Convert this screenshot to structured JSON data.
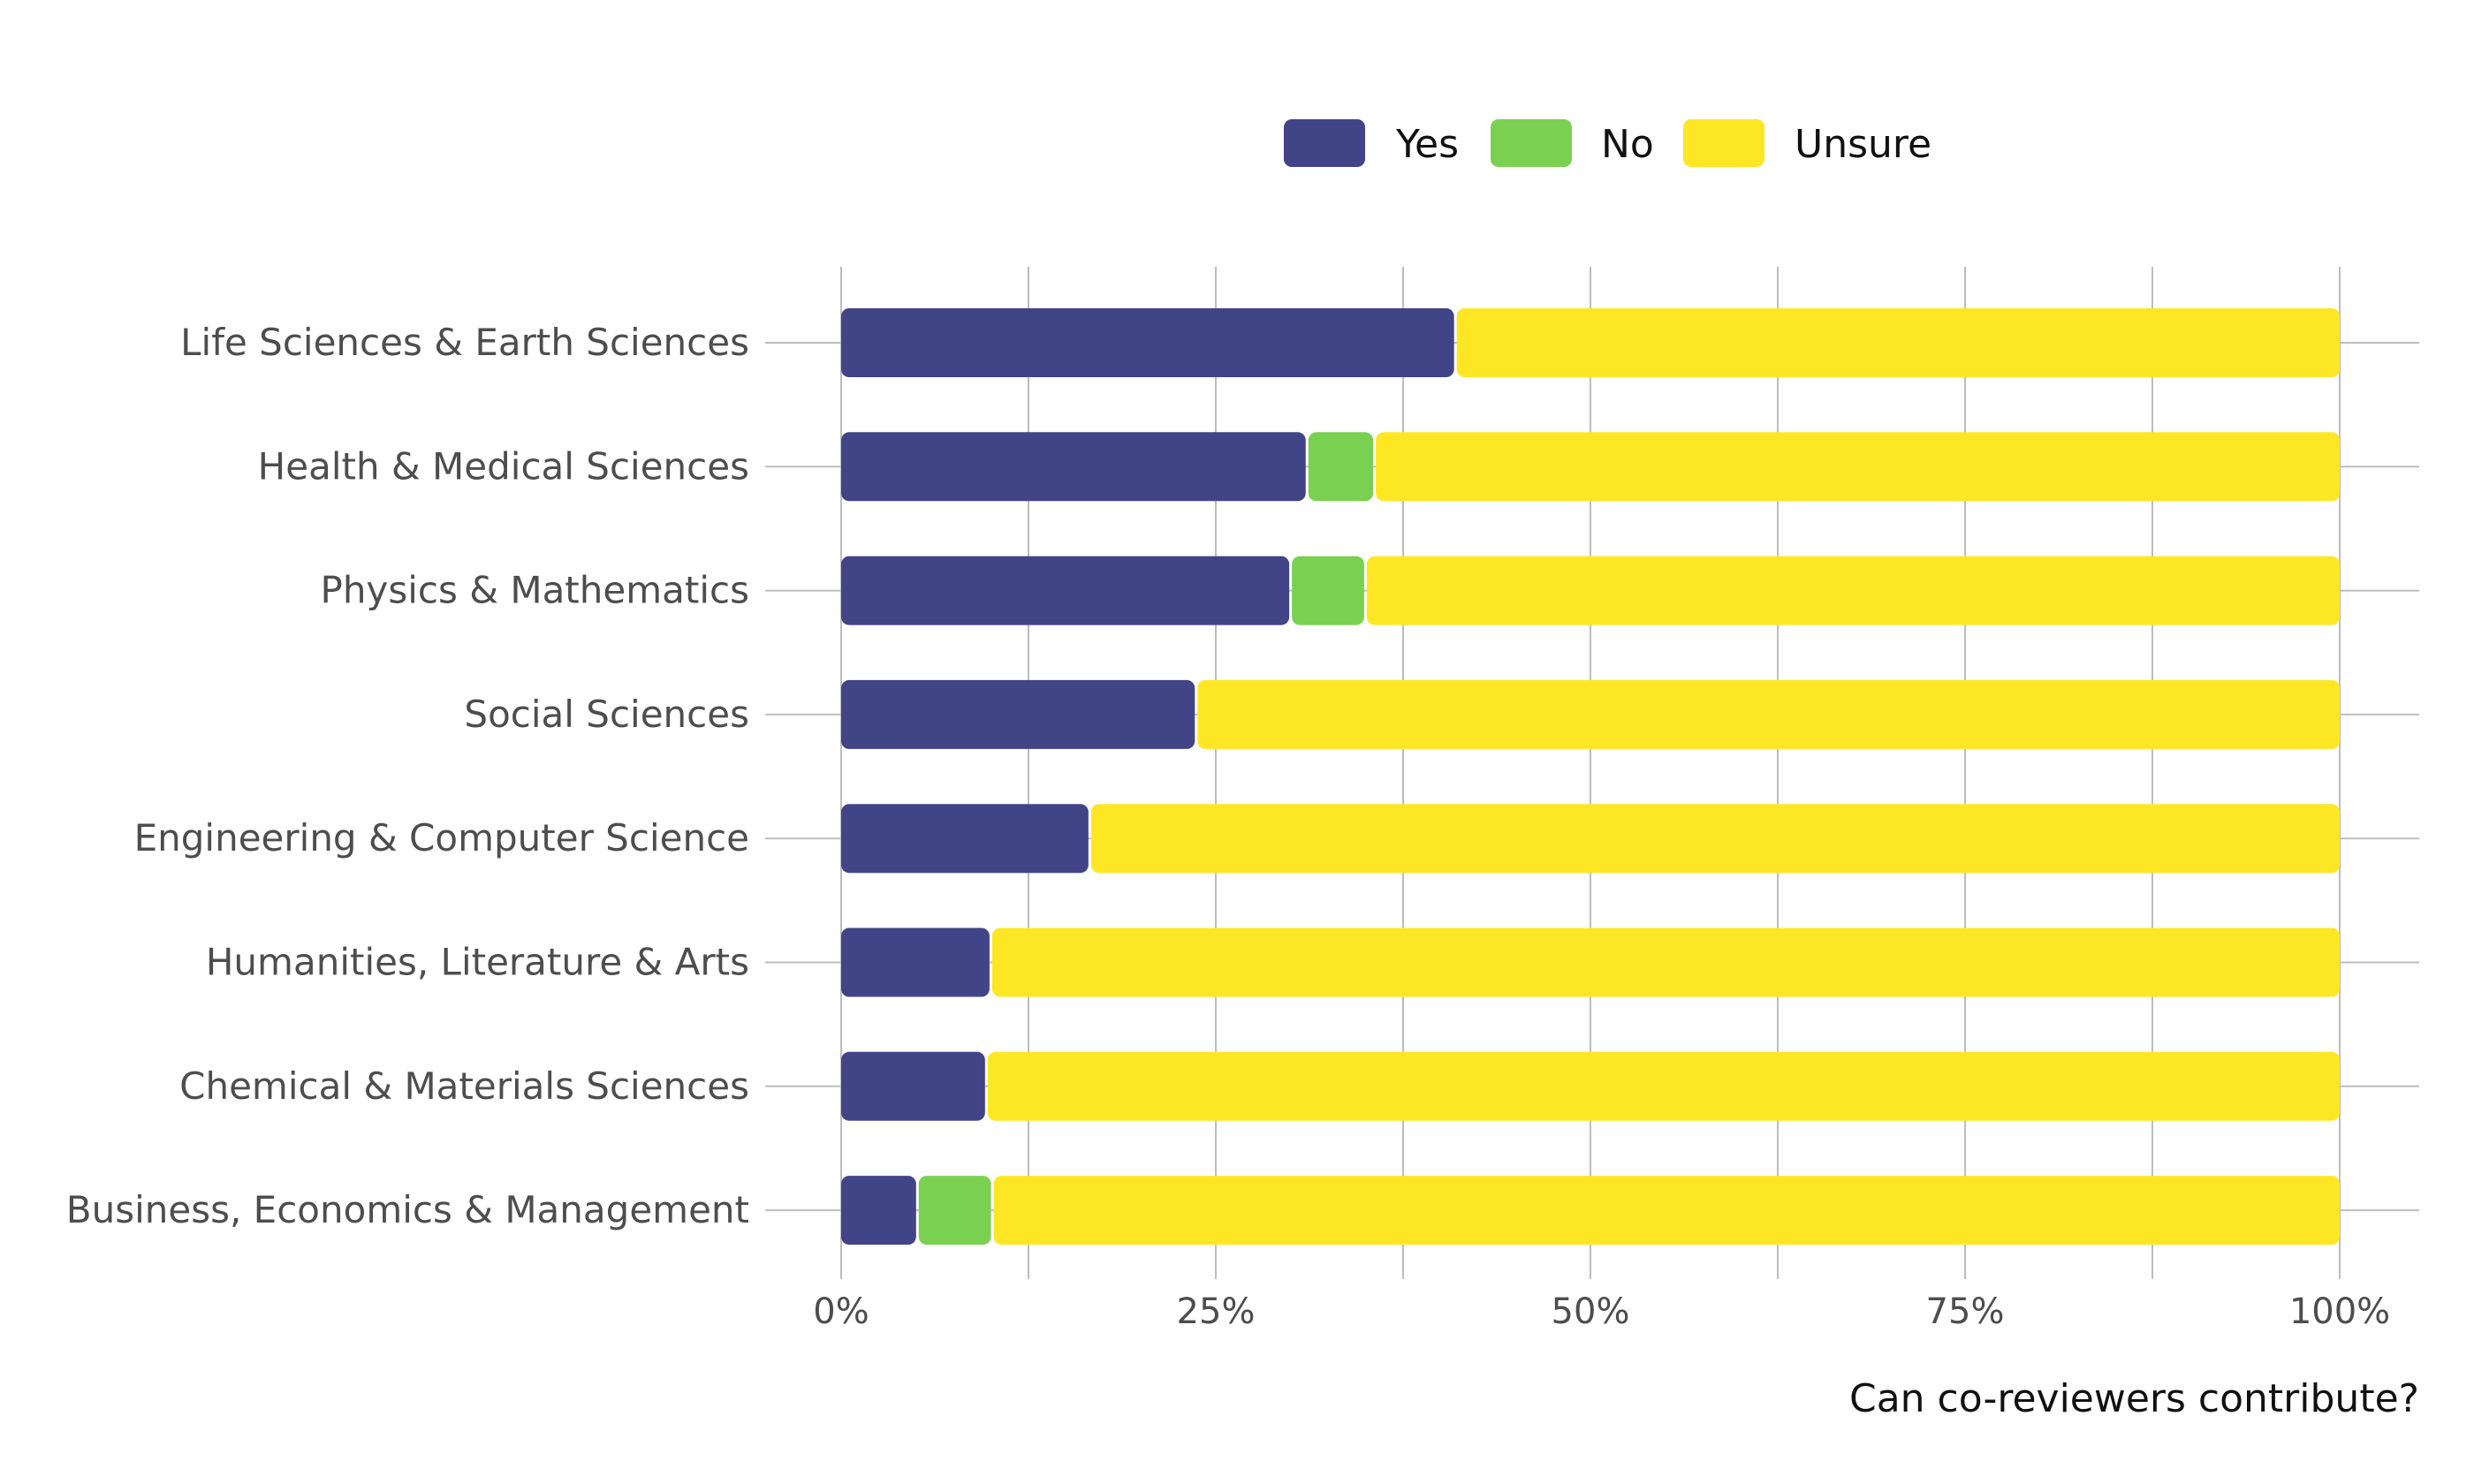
{
  "chart_data": {
    "type": "bar",
    "orientation": "horizontal",
    "stacked": true,
    "percent": true,
    "title": "",
    "xlabel": "Can co-reviewers contribute?",
    "ylabel": "",
    "xlim": [
      0,
      100
    ],
    "x_ticks": [
      "0%",
      "25%",
      "50%",
      "75%",
      "100%"
    ],
    "grid": true,
    "legend_position": "top",
    "categories": [
      "Life Sciences & Earth Sciences",
      "Health & Medical Sciences",
      "Physics & Mathematics",
      "Social Sciences",
      "Engineering & Computer Science",
      "Humanities, Literature & Arts",
      "Chemical & Materials Sciences",
      "Business, Economics & Management"
    ],
    "series": [
      {
        "name": "Yes",
        "color": "#414487",
        "values": [
          40.9,
          31.0,
          29.9,
          23.6,
          16.5,
          9.9,
          9.6,
          5.0
        ]
      },
      {
        "name": "No",
        "color": "#7AD151",
        "values": [
          0,
          4.5,
          5.0,
          0,
          0,
          0,
          0,
          5.0
        ]
      },
      {
        "name": "Unsure",
        "color": "#FDE725",
        "values": [
          59.1,
          64.5,
          65.1,
          76.4,
          83.5,
          90.1,
          90.4,
          90.0
        ]
      }
    ]
  }
}
